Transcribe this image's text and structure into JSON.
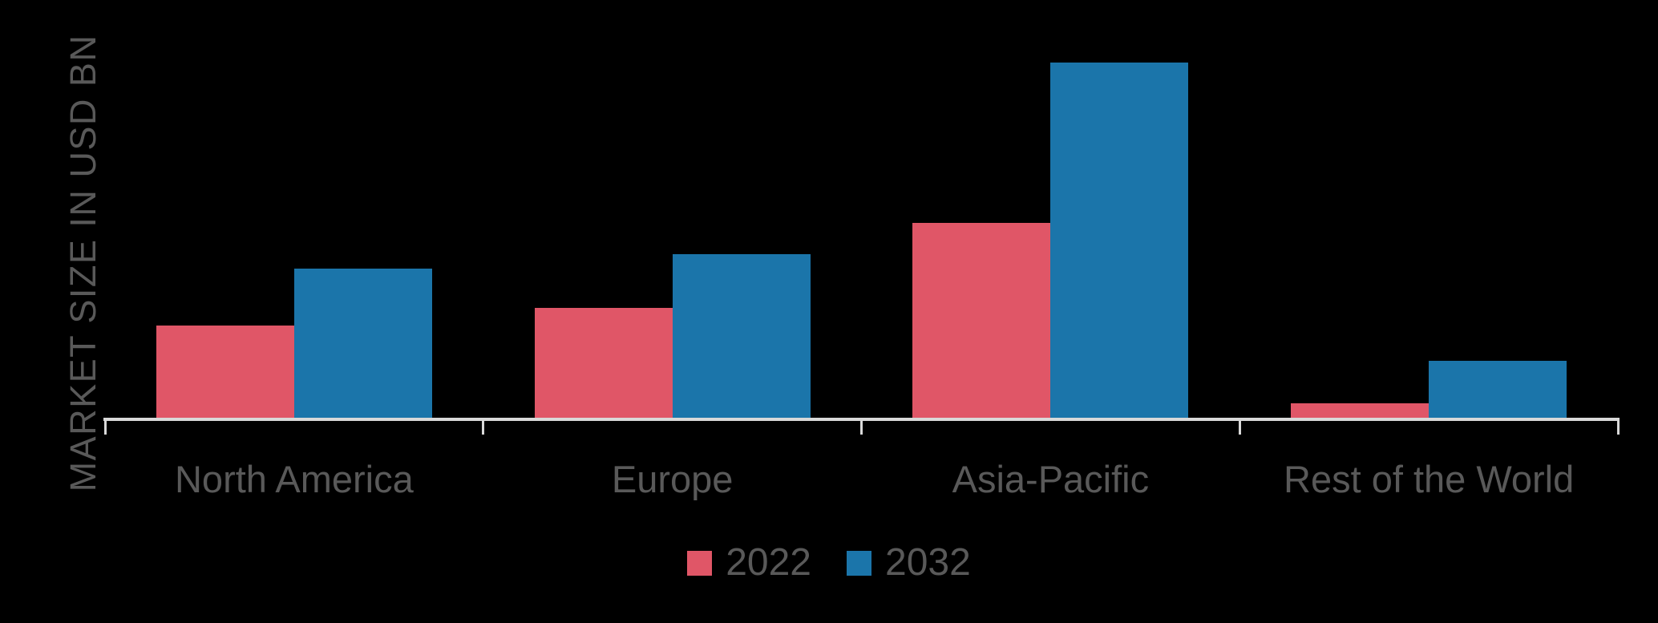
{
  "colors": {
    "background": "#000000",
    "axis_line": "#D9D9D9",
    "text": "#595959",
    "series_2022": "#E05667",
    "series_2032": "#1B75AA"
  },
  "chart_data": {
    "type": "bar",
    "title": "",
    "categories": [
      "North America",
      "Europe",
      "Asia-Pacific",
      "Rest of the World"
    ],
    "series": [
      {
        "name": "2022",
        "color": "#E05667",
        "values": [
          26,
          31,
          55,
          4
        ]
      },
      {
        "name": "2032",
        "color": "#1B75AA",
        "values": [
          42,
          46,
          100,
          16
        ]
      }
    ],
    "xlabel": "",
    "ylabel": "MARKET SIZE IN USD BN",
    "ylim": [
      0,
      108
    ],
    "axis_unlabeled": true,
    "grid": false,
    "y_tick_labels_visible": false,
    "data_labels_visible": false,
    "legend_position": "bottom-center"
  }
}
